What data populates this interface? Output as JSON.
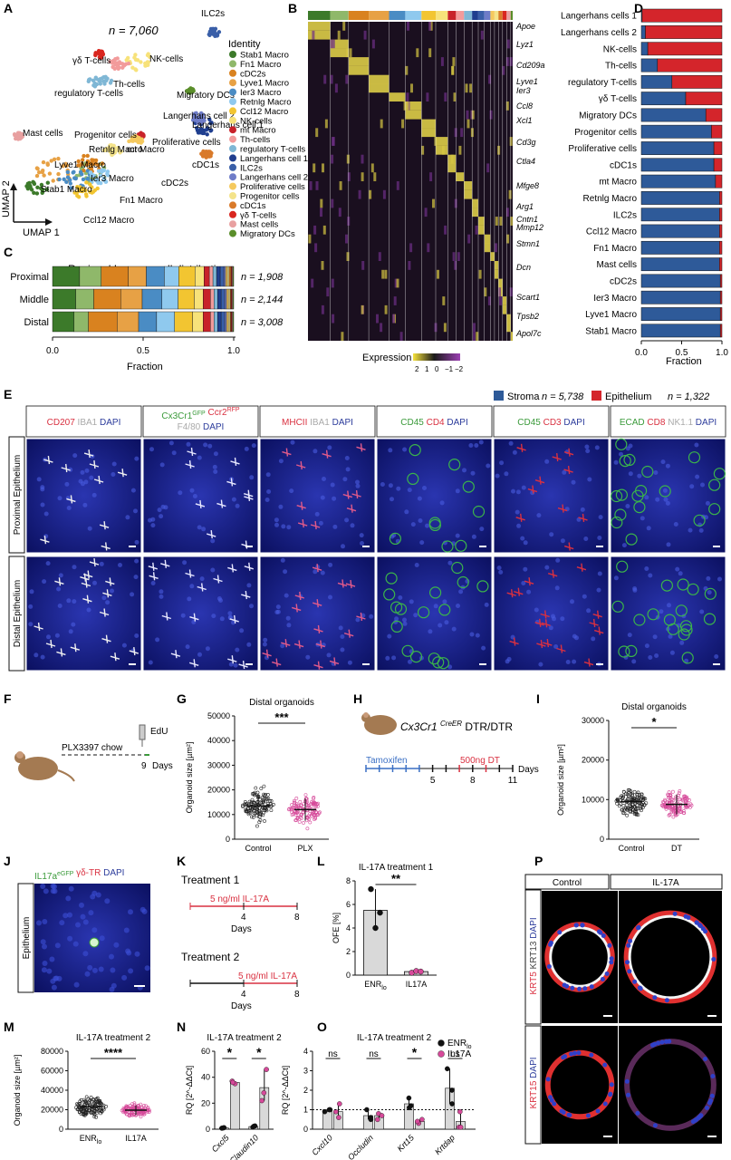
{
  "panel_letters": [
    "A",
    "B",
    "C",
    "D",
    "E",
    "F",
    "G",
    "H",
    "I",
    "J",
    "K",
    "L",
    "M",
    "N",
    "O",
    "P"
  ],
  "panelA": {
    "n_label": "n = 7,060",
    "axis_x": "UMAP 1",
    "axis_y": "UMAP 2",
    "legend_title": "Identity",
    "identities": [
      {
        "name": "Stab1 Macro",
        "color": "#3c7a2a"
      },
      {
        "name": "Fn1 Macro",
        "color": "#8fb86a"
      },
      {
        "name": "cDC2s",
        "color": "#d9821f"
      },
      {
        "name": "Lyve1 Macro",
        "color": "#e7a145"
      },
      {
        "name": "Ier3 Macro",
        "color": "#4a8cc4"
      },
      {
        "name": "Retnlg Macro",
        "color": "#8fc9ee"
      },
      {
        "name": "Ccl12 Macro",
        "color": "#f2c531"
      },
      {
        "name": "NK-cells",
        "color": "#f7e27a"
      },
      {
        "name": "mt Macro",
        "color": "#c8222a"
      },
      {
        "name": "Th-cells",
        "color": "#f29b9b"
      },
      {
        "name": "regulatory T-cells",
        "color": "#7fb7d5"
      },
      {
        "name": "Langerhans cell 1",
        "color": "#1f3e8f"
      },
      {
        "name": "ILC2s",
        "color": "#3a5fa8"
      },
      {
        "name": "Langerhans cell 2",
        "color": "#6e7cc8"
      },
      {
        "name": "Proliferative cells",
        "color": "#f5c95e"
      },
      {
        "name": "Progenitor cells",
        "color": "#f4e38a"
      },
      {
        "name": "cDC1s",
        "color": "#d97a2a"
      },
      {
        "name": "γδ T-cells",
        "color": "#d9261f"
      },
      {
        "name": "Mast cells",
        "color": "#e8a0a0"
      },
      {
        "name": "Migratory DCs",
        "color": "#5a8e2a"
      }
    ],
    "cluster_labels": [
      "γδ T-cells",
      "NK-cells",
      "ILC2s",
      "Th-cells",
      "regulatory T-cells",
      "Migratory DCs",
      "Mast cells",
      "Langerhans cell 2",
      "Progenitor cells",
      "Langerhans cell 1",
      "Retnlg Macro",
      "mt Macro",
      "Proliferative cells",
      "Lyve1 Macro",
      "Ier3 Macro",
      "cDC1s",
      "cDC2s",
      "Stab1 Macro",
      "Fn1 Macro",
      "Ccl12 Macro"
    ]
  },
  "panelB": {
    "genes": [
      "Apoe",
      "Lyz1",
      "Cd209a",
      "Lyve1",
      "Ier3",
      "Ccl8",
      "Xcl1",
      "Cd3g",
      "Ctla4",
      "Mfge8",
      "Arg1",
      "Cntn1",
      "Mmp12",
      "Stmn1",
      "Dcn",
      "Scart1",
      "Tpsb2",
      "Apol7c"
    ],
    "scale_title": "Expression",
    "scale_ticks": [
      "2",
      "1",
      "0",
      "−1",
      "−2"
    ]
  },
  "panelC": {
    "title": "Regional Immune cell distribution",
    "xlabel": "Fraction",
    "xticks": [
      "0.0",
      "0.5",
      "1.0"
    ]
  },
  "panelD": {
    "xlabel": "Fraction",
    "xticks": [
      "0.0",
      "0.5",
      "1.0"
    ],
    "legend": [
      {
        "name": "Stroma",
        "n": "n = 5,738",
        "color": "#2e5a99"
      },
      {
        "name": "Epithelium",
        "n": "n = 1,322",
        "color": "#d4252b"
      }
    ]
  },
  "panelE": {
    "columns": [
      [
        {
          "t": "CD207 ",
          "c": "#d93040"
        },
        {
          "t": "IBA1 ",
          "c": "#aaaaaa"
        },
        {
          "t": "DAPI",
          "c": "#2b3b9b"
        }
      ],
      [
        {
          "t": "Cx3Cr1",
          "c": "#3a9a3a"
        },
        {
          "t": "GFP",
          "c": "#3a9a3a",
          "sup": true
        },
        {
          "t": " Ccr2",
          "c": "#d93040"
        },
        {
          "t": "RFP",
          "c": "#d93040",
          "sup": true
        },
        {
          "t": "|F4/80 ",
          "c": "#aaaaaa"
        },
        {
          "t": "DAPI",
          "c": "#2b3b9b"
        }
      ],
      [
        {
          "t": "MHCII ",
          "c": "#d93040"
        },
        {
          "t": "IBA1 ",
          "c": "#aaaaaa"
        },
        {
          "t": "DAPI",
          "c": "#2b3b9b"
        }
      ],
      [
        {
          "t": "CD45 ",
          "c": "#3a9a3a"
        },
        {
          "t": "CD4 ",
          "c": "#d93040"
        },
        {
          "t": "DAPI",
          "c": "#2b3b9b"
        }
      ],
      [
        {
          "t": "CD45 ",
          "c": "#3a9a3a"
        },
        {
          "t": "CD3 ",
          "c": "#d93040"
        },
        {
          "t": "DAPI",
          "c": "#2b3b9b"
        }
      ],
      [
        {
          "t": "ECAD ",
          "c": "#3a9a3a"
        },
        {
          "t": "CD8 ",
          "c": "#d93040"
        },
        {
          "t": "NK1.1 ",
          "c": "#aaaaaa"
        },
        {
          "t": "DAPI",
          "c": "#2b3b9b"
        }
      ]
    ],
    "rows": [
      "Proximal Epithelium",
      "Distal Epithelium"
    ]
  },
  "panelF": {
    "chow": "PLX3397 chow",
    "edu": "EdU",
    "day": "9",
    "days": "Days"
  },
  "panelH": {
    "mouse": "Cx3Cr1",
    "mouse_sup": "CreER",
    "mouse_tail": " DTR/DTR",
    "tamoxifen": "Tamoxifen",
    "dt": "500ng DT",
    "ticks": [
      "5",
      "8",
      "11"
    ],
    "days": "Days"
  },
  "panelJ": {
    "label_parts": [
      {
        "t": "IL17a",
        "c": "#3a9a3a"
      },
      {
        "t": "eGFP",
        "c": "#3a9a3a",
        "sup": true
      },
      {
        "t": " γδ-TR ",
        "c": "#d93040"
      },
      {
        "t": "DAPI",
        "c": "#2b3b9b"
      }
    ],
    "row": "Epithelium"
  },
  "panelK": {
    "t1": "Treatment 1",
    "t2": "Treatment 2",
    "dose": "5 ng/ml IL-17A",
    "ticks": [
      "4",
      "8"
    ],
    "days": "Days"
  },
  "panelP": {
    "cols": [
      "Control",
      "IL-17A"
    ],
    "row1": [
      {
        "t": "KRT5 ",
        "c": "#d93040"
      },
      {
        "t": "KRT13 ",
        "c": "#444"
      },
      {
        "t": "DAPI",
        "c": "#2b3b9b"
      }
    ],
    "row2": [
      {
        "t": "KRT15 ",
        "c": "#d93040"
      },
      {
        "t": "DAPI",
        "c": "#2b3b9b"
      }
    ]
  },
  "chart_data": [
    {
      "id": "C",
      "type": "bar",
      "orientation": "horizontal",
      "stacked": true,
      "title": "Regional Immune cell distribution",
      "xlabel": "Fraction",
      "xlim": [
        0,
        1
      ],
      "categories": [
        "Proximal",
        "Middle",
        "Distal"
      ],
      "annotations": [
        "n = 1,908",
        "n = 2,144",
        "n = 3,008"
      ],
      "series_colors": [
        "#3c7a2a",
        "#8fb86a",
        "#d9821f",
        "#e7a145",
        "#4a8cc4",
        "#8fc9ee",
        "#f2c531",
        "#f7e27a",
        "#c8222a",
        "#f29b9b",
        "#7fb7d5",
        "#1f3e8f",
        "#3a5fa8",
        "#6e7cc8",
        "#f5c95e",
        "#f4e38a",
        "#d97a2a",
        "#d9261f",
        "#e8a0a0",
        "#5a8e2a"
      ],
      "rows": [
        [
          0.15,
          0.12,
          0.15,
          0.1,
          0.1,
          0.08,
          0.09,
          0.05,
          0.03,
          0.02,
          0.02,
          0.02,
          0.02,
          0.01,
          0.01,
          0.01,
          0.01,
          0.005,
          0.005,
          0.005
        ],
        [
          0.13,
          0.1,
          0.15,
          0.12,
          0.11,
          0.09,
          0.09,
          0.05,
          0.04,
          0.02,
          0.02,
          0.02,
          0.02,
          0.01,
          0.01,
          0.01,
          0.005,
          0.005,
          0.005,
          0.005
        ],
        [
          0.12,
          0.08,
          0.16,
          0.12,
          0.1,
          0.1,
          0.1,
          0.06,
          0.04,
          0.02,
          0.02,
          0.02,
          0.02,
          0.01,
          0.01,
          0.01,
          0.005,
          0.005,
          0.005,
          0.005
        ]
      ]
    },
    {
      "id": "D",
      "type": "bar",
      "orientation": "horizontal",
      "stacked": true,
      "xlabel": "Fraction",
      "xlim": [
        0,
        1
      ],
      "categories": [
        "Langerhans cells 1",
        "Langerhans cells 2",
        "NK-cells",
        "Th-cells",
        "regulatory T-cells",
        "γδ T-cells",
        "Migratory DCs",
        "Progenitor cells",
        "Proliferative cells",
        "cDC1s",
        "mt Macro",
        "Retnlg Macro",
        "ILC2s",
        "Ccl12 Macro",
        "Fn1 Macro",
        "Mast cells",
        "cDC2s",
        "Ier3 Macro",
        "Lyve1 Macro",
        "Stab1 Macro"
      ],
      "series": [
        {
          "name": "Stroma",
          "values": [
            0.01,
            0.05,
            0.08,
            0.2,
            0.38,
            0.55,
            0.8,
            0.87,
            0.9,
            0.9,
            0.92,
            0.97,
            0.97,
            0.97,
            0.97,
            0.97,
            0.98,
            0.98,
            0.98,
            0.98
          ]
        },
        {
          "name": "Epithelium",
          "values": [
            0.99,
            0.95,
            0.92,
            0.8,
            0.62,
            0.45,
            0.2,
            0.13,
            0.1,
            0.1,
            0.08,
            0.03,
            0.03,
            0.03,
            0.03,
            0.03,
            0.02,
            0.02,
            0.02,
            0.02
          ]
        }
      ]
    },
    {
      "id": "G",
      "type": "scatter",
      "title": "Distal organoids",
      "ylabel": "Organoid size [µm²]",
      "categories": [
        "Control",
        "PLX"
      ],
      "yticks": [
        "0",
        "10000",
        "20000",
        "30000",
        "40000",
        "50000"
      ],
      "ylim": [
        0,
        50000
      ],
      "means": [
        13500,
        12000
      ],
      "sd": [
        5000,
        4500
      ],
      "significance": "***"
    },
    {
      "id": "I",
      "type": "scatter",
      "title": "Distal organoids",
      "ylabel": "Organoid size [µm²]",
      "categories": [
        "Control",
        "DT"
      ],
      "yticks": [
        "0",
        "10000",
        "20000",
        "30000"
      ],
      "ylim": [
        0,
        30000
      ],
      "means": [
        9500,
        8800
      ],
      "sd": [
        2500,
        2500
      ],
      "significance": "*"
    },
    {
      "id": "L",
      "type": "bar",
      "title": "IL-17A treatment 1",
      "ylabel": "OFE [%]",
      "categories": [
        "ENR",
        "IL17A"
      ],
      "category_sub": [
        "lo",
        ""
      ],
      "yticks": [
        "0",
        "2",
        "4",
        "6",
        "8"
      ],
      "ylim": [
        0,
        8
      ],
      "values": [
        5.5,
        0.3
      ],
      "points": [
        [
          7.3,
          4.0,
          5.3
        ],
        [
          0.2,
          0.35,
          0.3
        ]
      ],
      "significance": "**"
    },
    {
      "id": "M",
      "type": "scatter",
      "title": "IL-17A treatment 2",
      "ylabel": "Organoid size [µm²]",
      "categories": [
        "ENR",
        "IL17A"
      ],
      "category_sub": [
        "lo",
        ""
      ],
      "yticks": [
        "0",
        "20000",
        "40000",
        "60000",
        "80000"
      ],
      "ylim": [
        0,
        80000
      ],
      "means": [
        23000,
        19500
      ],
      "sd": [
        8000,
        5000
      ],
      "significance": "****"
    },
    {
      "id": "N",
      "type": "bar",
      "title": "IL-17A treatment 2",
      "ylabel": "RQ [2^-ΔΔCt]",
      "categories": [
        "Cxcl5",
        "Claudin10"
      ],
      "yticks": [
        "0",
        "20",
        "40",
        "60"
      ],
      "ylim": [
        0,
        60
      ],
      "series": [
        {
          "name": "ENR lo",
          "values": [
            1,
            2
          ]
        },
        {
          "name": "IL17A",
          "values": [
            36,
            32
          ]
        }
      ],
      "points": [
        [
          [
            0.8,
            1.0,
            1.2
          ],
          [
            1.5,
            2.2,
            2.5
          ]
        ],
        [
          [
            35,
            37,
            36
          ],
          [
            22,
            28,
            46
          ]
        ]
      ],
      "significance": [
        "*",
        "*"
      ]
    },
    {
      "id": "O",
      "type": "bar",
      "title": "IL-17A treatment 2",
      "ylabel": "RQ [2^-ΔΔCt]",
      "categories": [
        "Cxcl10",
        "Occludin",
        "Krt15",
        "Krtdap"
      ],
      "yticks": [
        "0",
        "1",
        "2",
        "3",
        "4"
      ],
      "ylim": [
        0,
        4
      ],
      "series": [
        {
          "name": "ENR lo",
          "values": [
            1.0,
            0.7,
            1.3,
            2.1
          ]
        },
        {
          "name": "IL17A",
          "values": [
            0.9,
            0.7,
            0.4,
            0.4
          ]
        }
      ],
      "points": [
        [
          [
            1.0,
            0.9,
            1.0
          ],
          [
            1.0,
            0.5,
            0.6
          ],
          [
            1.6,
            1.2,
            1.1
          ],
          [
            3.1,
            1.3,
            2.0
          ]
        ],
        [
          [
            0.6,
            1.3,
            0.9
          ],
          [
            0.8,
            0.5,
            0.7
          ],
          [
            0.5,
            0.3,
            0.4
          ],
          [
            0.9,
            0.1,
            0.1
          ]
        ]
      ],
      "significance": [
        "ns",
        "ns",
        "*",
        "ns"
      ],
      "legend": [
        "ENR",
        "IL17A"
      ],
      "legend_sub": [
        "lo",
        ""
      ]
    }
  ]
}
